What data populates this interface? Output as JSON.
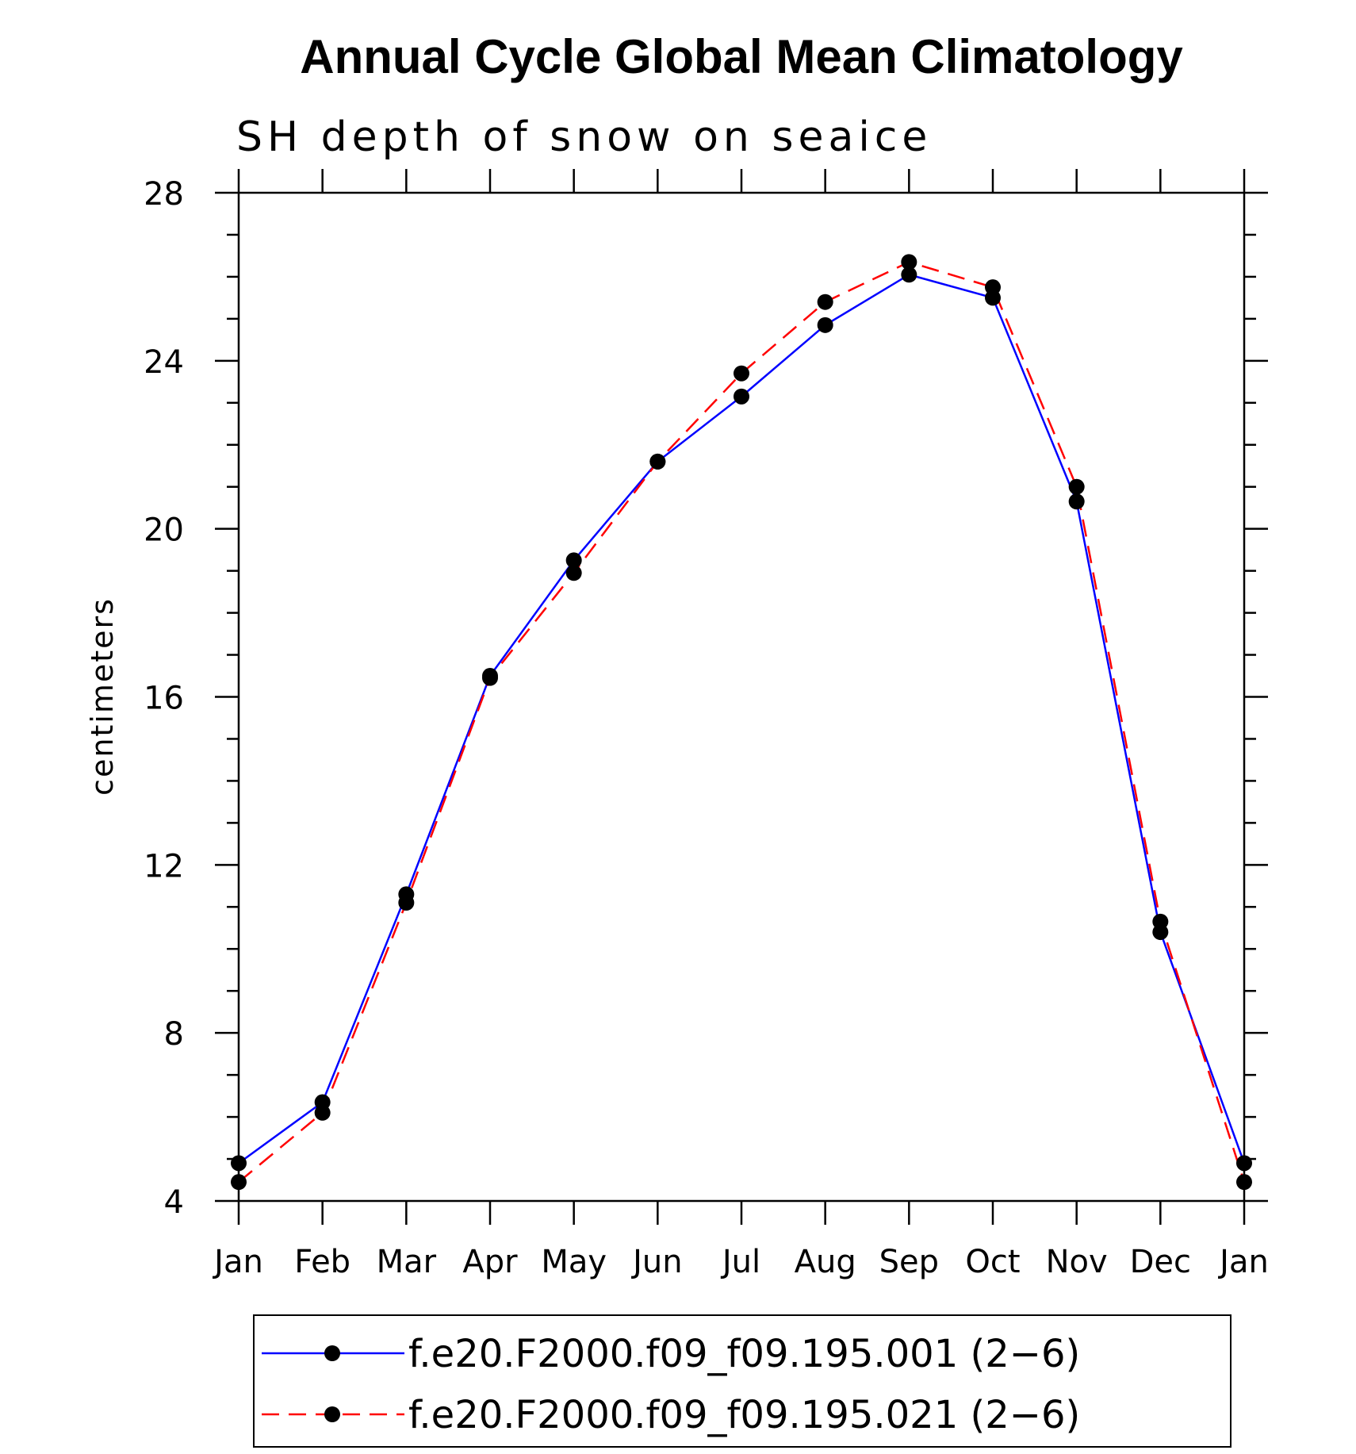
{
  "chart_data": {
    "type": "line",
    "title": "Annual Cycle Global Mean Climatology",
    "subtitle": "SH depth of snow on seaice",
    "xlabel": "",
    "ylabel": "centimeters",
    "categories": [
      "Jan",
      "Feb",
      "Mar",
      "Apr",
      "May",
      "Jun",
      "Jul",
      "Aug",
      "Sep",
      "Oct",
      "Nov",
      "Dec",
      "Jan"
    ],
    "ylim": [
      4,
      28
    ],
    "yticks": [
      "4",
      "8",
      "12",
      "16",
      "20",
      "24",
      "28"
    ],
    "series": [
      {
        "name": "f.e20.F2000.f09_f09.195.001 (2−6)",
        "color": "#0000ff",
        "style": "solid",
        "marker": "filled-circle",
        "values": [
          4.9,
          6.35,
          11.3,
          16.5,
          19.25,
          21.6,
          23.15,
          24.85,
          26.05,
          25.5,
          20.65,
          10.4,
          4.9
        ]
      },
      {
        "name": "f.e20.F2000.f09_f09.195.021 (2−6)",
        "color": "#ff0000",
        "style": "dashed",
        "marker": "filled-circle",
        "values": [
          4.45,
          6.1,
          11.1,
          16.45,
          18.95,
          21.6,
          23.7,
          25.4,
          26.35,
          25.75,
          21.0,
          10.65,
          4.45
        ]
      }
    ],
    "grid": false,
    "legend": "bottom"
  }
}
